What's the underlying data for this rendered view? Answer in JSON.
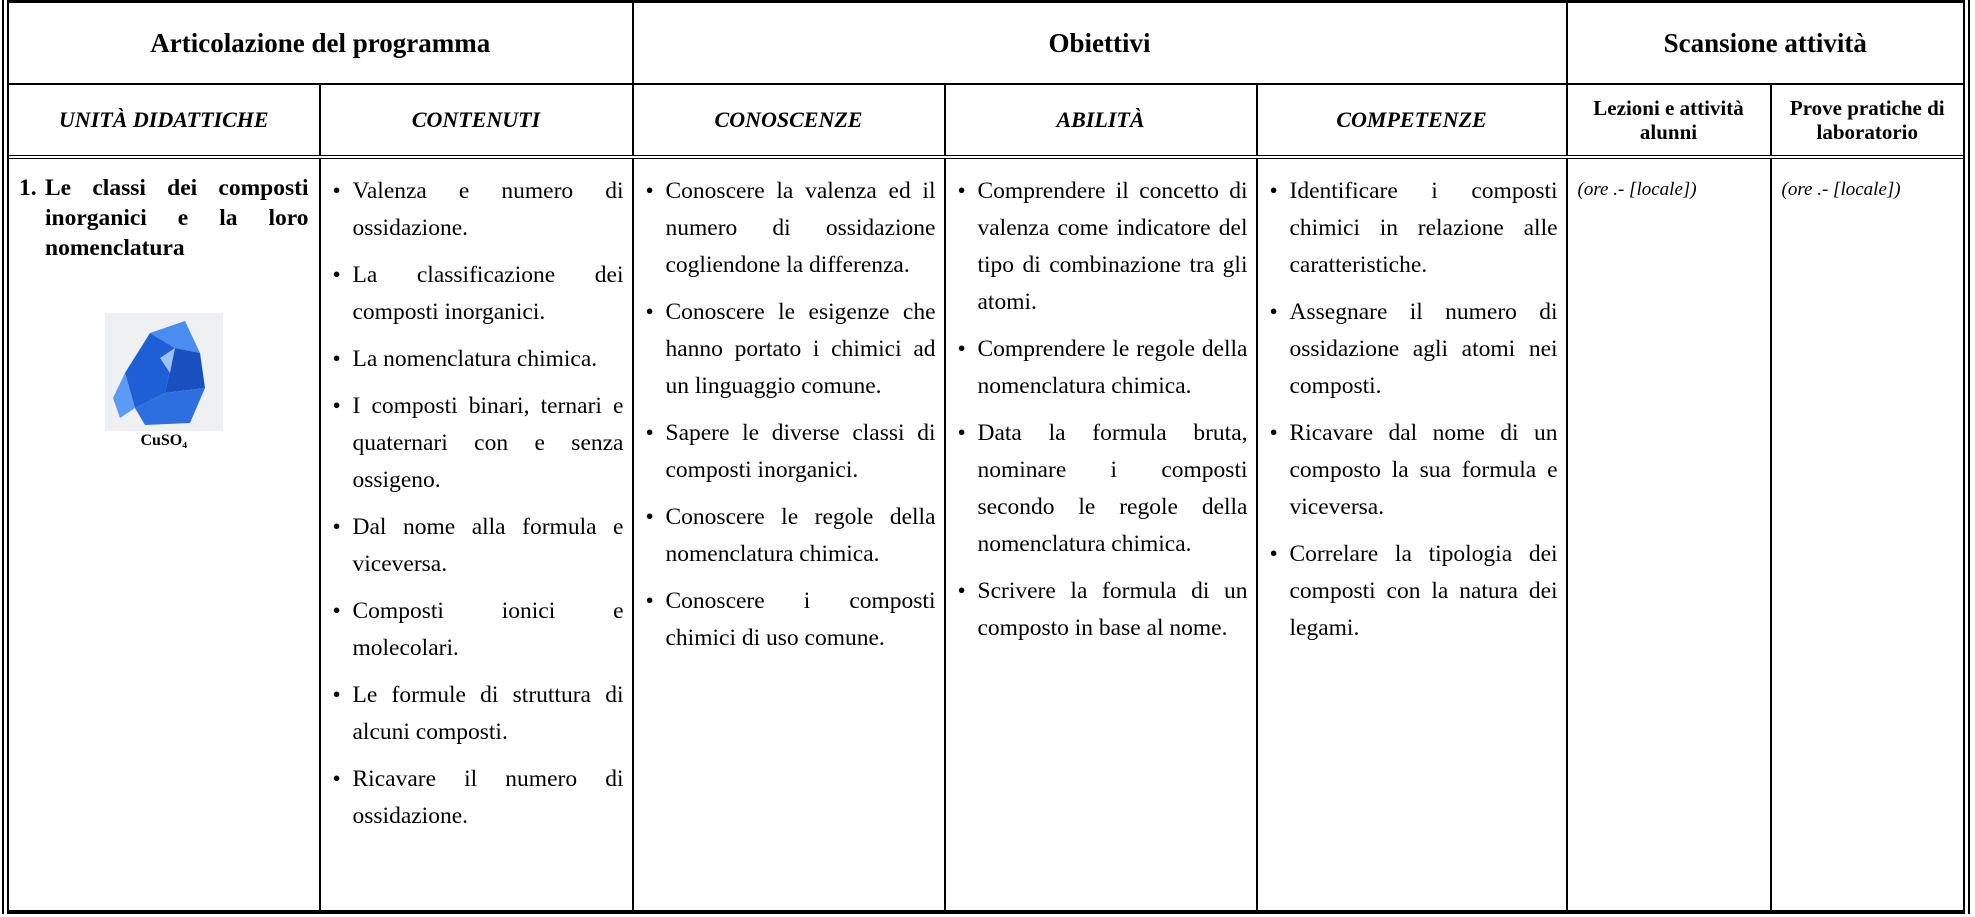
{
  "table": {
    "group_headers": [
      "Articolazione del programma",
      "Obiettivi",
      "Scansione attività"
    ],
    "column_headers": [
      "UNITÀ DIDATTICHE",
      "CONTENUTI",
      "CONOSCENZE",
      "ABILITÀ",
      "COMPETENZE",
      "Lezioni e attività alunni",
      "Prove pratiche di laboratorio"
    ],
    "unit": {
      "number": "1.",
      "title": "Le classi dei composti inorganici e la loro nomenclatura",
      "image_caption": "CuSO₄"
    },
    "contenuti": [
      "Valenza e numero di ossidazione.",
      "La classificazione dei composti inorganici.",
      "La nomenclatura chimica.",
      "I composti binari, ternari e quaternari con e senza ossigeno.",
      "Dal nome alla formula e viceversa.",
      "Composti ionici e molecolari.",
      "Le formule di struttura di alcuni composti.",
      "Ricavare il numero di ossidazione."
    ],
    "conoscenze": [
      "Conoscere la valenza ed il numero di ossidazione cogliendone la differenza.",
      "Conoscere le esigenze che hanno portato i chimici ad un linguaggio comune.",
      "Sapere le diverse classi di composti inorganici.",
      "Conoscere le regole della nomenclatura chimica.",
      "Conoscere i composti chimici di uso comune."
    ],
    "abilita": [
      "Comprendere il concetto di valenza come indicatore del tipo di combinazione tra gli atomi.",
      "Comprendere le regole della nomenclatura chimica.",
      "Data la formula bruta, nominare i composti secondo le regole della nomenclatura chimica.",
      "Scrivere la formula di un composto in base al nome."
    ],
    "competenze": [
      "Identificare i composti chimici in relazione alle caratteristiche.",
      "Assegnare il numero di ossidazione agli atomi nei composti.",
      "Ricavare dal nome di un composto la sua formula e viceversa.",
      "Correlare la tipologia dei composti con la natura dei legami."
    ],
    "lezioni": "(ore .- [locale])",
    "prove": "(ore .- [locale])"
  }
}
